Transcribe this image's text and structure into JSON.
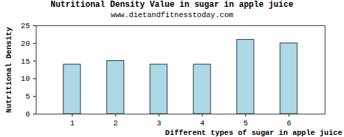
{
  "chart_data": {
    "type": "bar",
    "title": "Nutritional Density Value in sugar in apple juice",
    "subtitle": "www.dietandfitnesstoday.com",
    "xlabel": "Different types of sugar in apple juice",
    "ylabel": "Nutritional Density",
    "categories": [
      "1",
      "2",
      "3",
      "4",
      "5",
      "6"
    ],
    "values": [
      14,
      15,
      14,
      14,
      21,
      20
    ],
    "color": "#add8e6",
    "ylim": [
      0,
      25
    ],
    "yticks": [
      0,
      5,
      10,
      15,
      20,
      25
    ],
    "grid": false
  }
}
